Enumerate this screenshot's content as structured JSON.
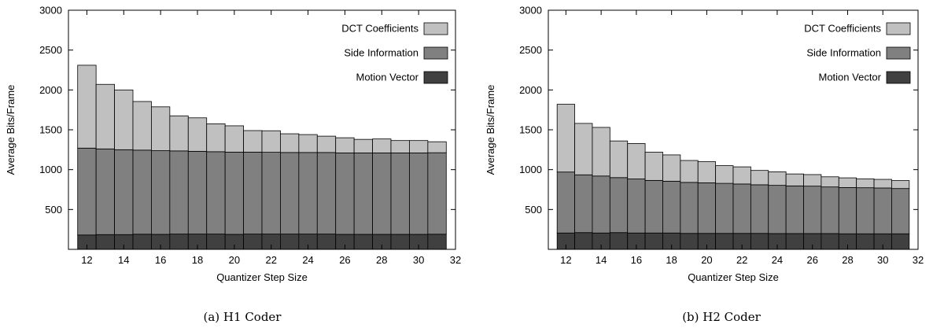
{
  "chart_data": [
    {
      "type": "bar",
      "stacked": true,
      "caption": "(a) H1 Coder",
      "xlabel": "Quantizer Step Size",
      "ylabel": "Average Bits/Frame",
      "xlim": [
        11,
        32
      ],
      "ylim": [
        0,
        3000
      ],
      "x_ticks": [
        12,
        14,
        16,
        18,
        20,
        22,
        24,
        26,
        28,
        30,
        32
      ],
      "y_ticks": [
        500,
        1000,
        1500,
        2000,
        2500,
        3000
      ],
      "x": [
        12,
        13,
        14,
        15,
        16,
        17,
        18,
        19,
        20,
        21,
        22,
        23,
        24,
        25,
        26,
        27,
        28,
        29,
        30,
        31
      ],
      "legend_position": "top-right",
      "grid": false,
      "series": [
        {
          "name": "Motion Vector",
          "color": "#404040",
          "values": [
            180,
            185,
            185,
            190,
            188,
            192,
            192,
            192,
            188,
            192,
            192,
            192,
            192,
            192,
            188,
            188,
            188,
            188,
            188,
            190
          ]
        },
        {
          "name": "Side Information",
          "color": "#808080",
          "values": [
            1090,
            1075,
            1065,
            1055,
            1050,
            1043,
            1038,
            1033,
            1032,
            1028,
            1026,
            1023,
            1023,
            1023,
            1022,
            1022,
            1022,
            1022,
            1022,
            1022
          ]
        },
        {
          "name": "DCT Coefficients",
          "color": "#c0c0c0",
          "values": [
            1040,
            810,
            750,
            610,
            550,
            440,
            420,
            350,
            330,
            270,
            270,
            235,
            225,
            205,
            190,
            170,
            175,
            155,
            155,
            138
          ]
        }
      ]
    },
    {
      "type": "bar",
      "stacked": true,
      "caption": "(b) H2 Coder",
      "xlabel": "Quantizer Step Size",
      "ylabel": "Average Bits/Frame",
      "xlim": [
        11,
        32
      ],
      "ylim": [
        0,
        3000
      ],
      "x_ticks": [
        12,
        14,
        16,
        18,
        20,
        22,
        24,
        26,
        28,
        30,
        32
      ],
      "y_ticks": [
        500,
        1000,
        1500,
        2000,
        2500,
        3000
      ],
      "x": [
        12,
        13,
        14,
        15,
        16,
        17,
        18,
        19,
        20,
        21,
        22,
        23,
        24,
        25,
        26,
        27,
        28,
        29,
        30,
        31
      ],
      "legend_position": "top-right",
      "grid": false,
      "series": [
        {
          "name": "Motion Vector",
          "color": "#404040",
          "values": [
            205,
            210,
            205,
            210,
            205,
            205,
            205,
            200,
            200,
            200,
            200,
            200,
            198,
            198,
            198,
            198,
            195,
            195,
            195,
            195
          ]
        },
        {
          "name": "Side Information",
          "color": "#808080",
          "values": [
            765,
            725,
            715,
            690,
            678,
            660,
            650,
            640,
            635,
            628,
            620,
            610,
            605,
            598,
            595,
            585,
            580,
            578,
            575,
            568
          ]
        },
        {
          "name": "DCT Coefficients",
          "color": "#c0c0c0",
          "values": [
            850,
            645,
            610,
            460,
            445,
            355,
            330,
            275,
            265,
            222,
            215,
            180,
            170,
            150,
            145,
            127,
            122,
            112,
            108,
            100
          ]
        }
      ]
    }
  ]
}
